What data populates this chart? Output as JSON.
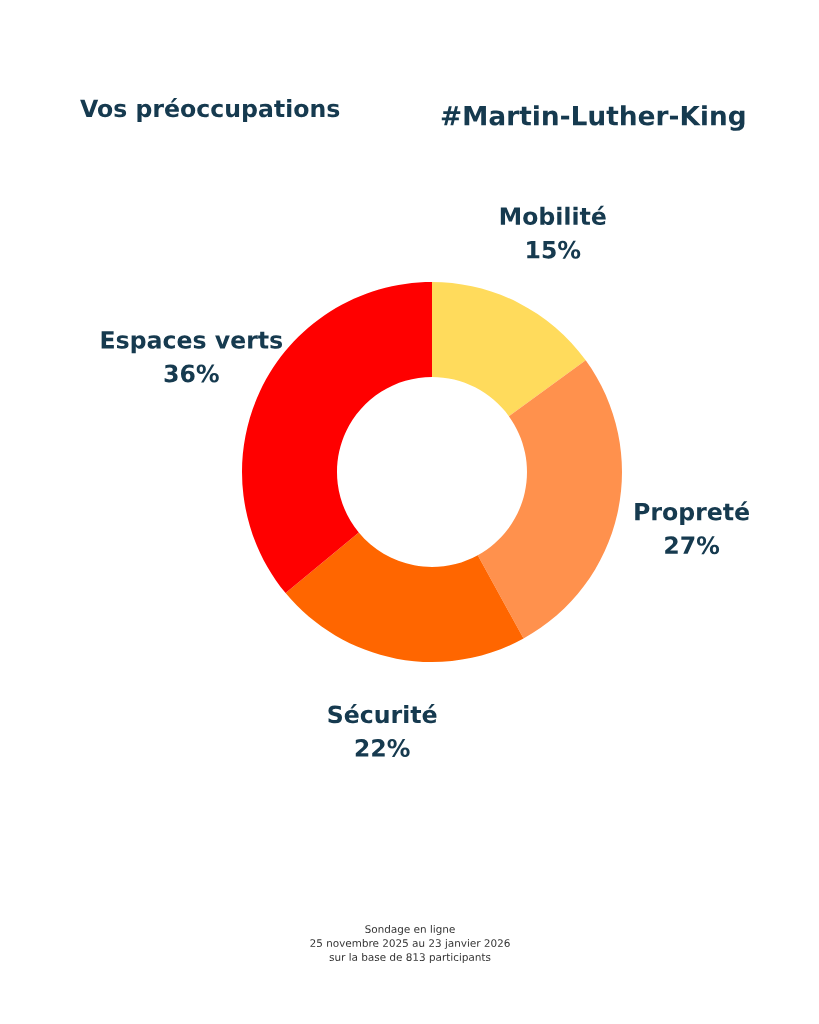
{
  "chart_data": {
    "type": "donut",
    "title": "Vos préoccupations",
    "subtitle": "#Martin-Luther-King",
    "categories": [
      "Mobilité",
      "Propreté",
      "Sécurité",
      "Espaces verts"
    ],
    "values": [
      15,
      27,
      22,
      36
    ],
    "value_labels": [
      "15%",
      "27%",
      "22%",
      "36%"
    ],
    "colors": [
      "#ffdb5c",
      "#ff914d",
      "#ff6600",
      "#ff0000"
    ],
    "legend": false,
    "annotations": [
      "Sondage en ligne",
      "25 novembre 2025 au 23 janvier 2026",
      "sur la base de 813 participants"
    ]
  }
}
